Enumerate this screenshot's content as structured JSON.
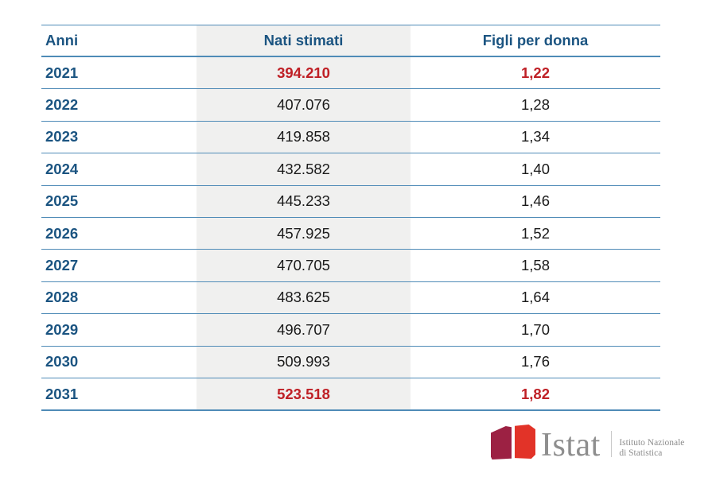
{
  "table": {
    "columns": [
      {
        "key": "year",
        "label": "Anni"
      },
      {
        "key": "births",
        "label": "Nati stimati"
      },
      {
        "key": "tfr",
        "label": "Figli per donna"
      }
    ],
    "rows": [
      {
        "year": "2021",
        "births": "394.210",
        "tfr": "1,22"
      },
      {
        "year": "2022",
        "births": "407.076",
        "tfr": "1,28"
      },
      {
        "year": "2023",
        "births": "419.858",
        "tfr": "1,34"
      },
      {
        "year": "2024",
        "births": "432.582",
        "tfr": "1,40"
      },
      {
        "year": "2025",
        "births": "445.233",
        "tfr": "1,46"
      },
      {
        "year": "2026",
        "births": "457.925",
        "tfr": "1,52"
      },
      {
        "year": "2027",
        "births": "470.705",
        "tfr": "1,58"
      },
      {
        "year": "2028",
        "births": "483.625",
        "tfr": "1,64"
      },
      {
        "year": "2029",
        "births": "496.707",
        "tfr": "1,70"
      },
      {
        "year": "2030",
        "births": "509.993",
        "tfr": "1,76"
      },
      {
        "year": "2031",
        "births": "523.518",
        "tfr": "1,82"
      }
    ],
    "highlighted_years": [
      "2021",
      "2031"
    ]
  },
  "chart_data": {
    "type": "table",
    "columns": [
      "Anni",
      "Nati stimati",
      "Figli per donna"
    ],
    "rows": [
      [
        "2021",
        "394.210",
        "1,22"
      ],
      [
        "2022",
        "407.076",
        "1,28"
      ],
      [
        "2023",
        "419.858",
        "1,34"
      ],
      [
        "2024",
        "432.582",
        "1,40"
      ],
      [
        "2025",
        "445.233",
        "1,46"
      ],
      [
        "2026",
        "457.925",
        "1,52"
      ],
      [
        "2027",
        "470.705",
        "1,58"
      ],
      [
        "2028",
        "483.625",
        "1,64"
      ],
      [
        "2029",
        "496.707",
        "1,70"
      ],
      [
        "2030",
        "509.993",
        "1,76"
      ],
      [
        "2031",
        "523.518",
        "1,82"
      ]
    ],
    "series": [
      {
        "name": "Nati stimati",
        "values": [
          394210,
          407076,
          419858,
          432582,
          445233,
          457925,
          470705,
          483625,
          496707,
          509993,
          523518
        ]
      },
      {
        "name": "Figli per donna",
        "values": [
          1.22,
          1.28,
          1.34,
          1.4,
          1.46,
          1.52,
          1.58,
          1.64,
          1.7,
          1.76,
          1.82
        ]
      }
    ],
    "categories": [
      "2021",
      "2022",
      "2023",
      "2024",
      "2025",
      "2026",
      "2027",
      "2028",
      "2029",
      "2030",
      "2031"
    ],
    "highlighted_rows": [
      "2021",
      "2031"
    ]
  },
  "logo": {
    "brand": "Istat",
    "institute_line1": "Istituto Nazionale",
    "institute_line2": "di Statistica"
  },
  "colors": {
    "header_text": "#1b5481",
    "year_text": "#1b5481",
    "divider_line": "#4f8bb7",
    "value_text": "#1a1a1a",
    "highlight_text": "#bf2026",
    "shaded_column_bg": "#f0f0ef",
    "logo_maroon": "#9c2143",
    "logo_red": "#e23328",
    "logo_gray": "#8e8e8e"
  }
}
